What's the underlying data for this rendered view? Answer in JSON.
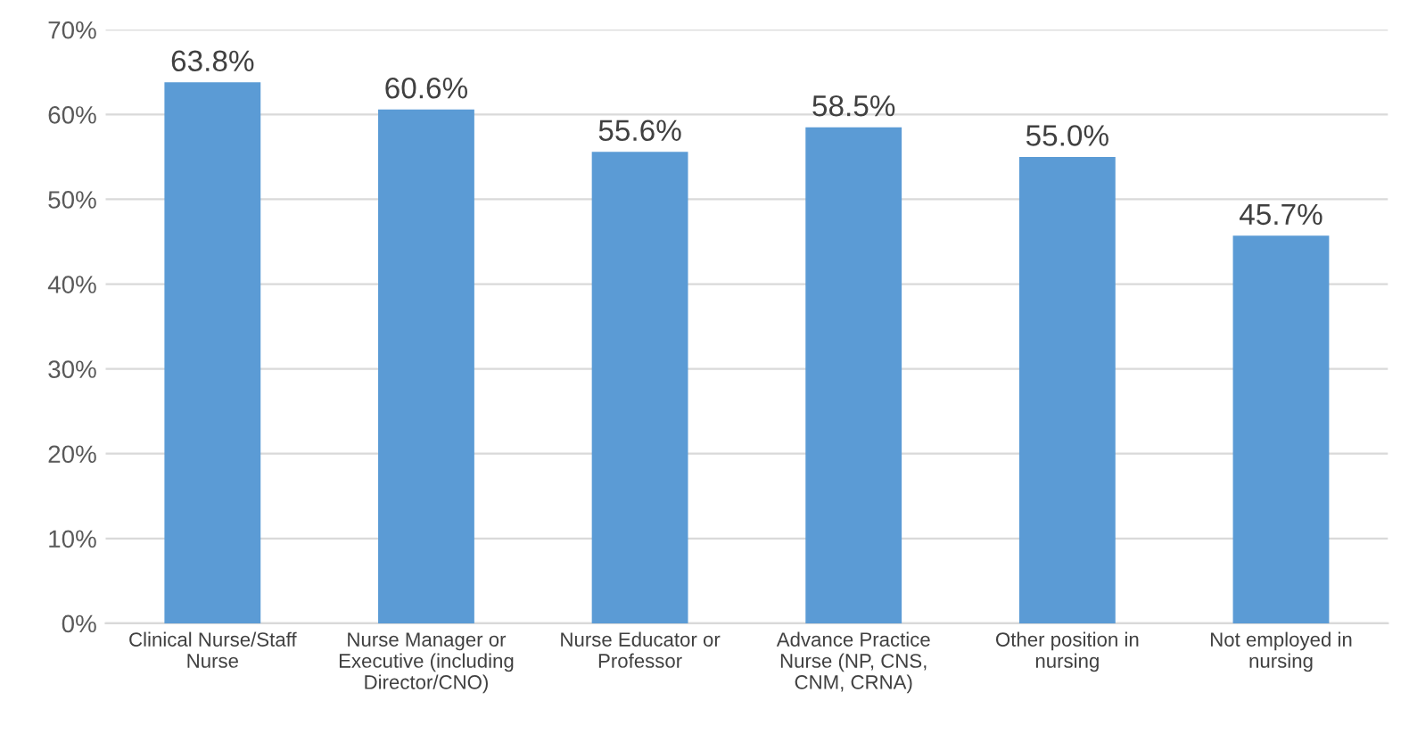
{
  "chart_data": {
    "type": "bar",
    "categories": [
      "Clinical Nurse/Staff\nNurse",
      "Nurse Manager or\nExecutive (including\nDirector/CNO)",
      "Nurse Educator or\nProfessor",
      "Advance Practice\nNurse (NP, CNS,\nCNM, CRNA)",
      "Other position in\nnursing",
      "Not employed in\nnursing"
    ],
    "values": [
      63.8,
      60.6,
      55.6,
      58.5,
      55.0,
      45.7
    ],
    "value_labels": [
      "63.8%",
      "60.6%",
      "55.6%",
      "58.5%",
      "55.0%",
      "45.7%"
    ],
    "color": "#5b9bd5",
    "ylim": [
      0,
      70
    ],
    "yticks": [
      {
        "value": 0,
        "label": "0%"
      },
      {
        "value": 10,
        "label": "10%"
      },
      {
        "value": 20,
        "label": "20%"
      },
      {
        "value": 30,
        "label": "30%"
      },
      {
        "value": 40,
        "label": "40%"
      },
      {
        "value": 50,
        "label": "50%"
      },
      {
        "value": 60,
        "label": "60%"
      },
      {
        "value": 70,
        "label": "70%"
      }
    ],
    "grid": "y"
  }
}
